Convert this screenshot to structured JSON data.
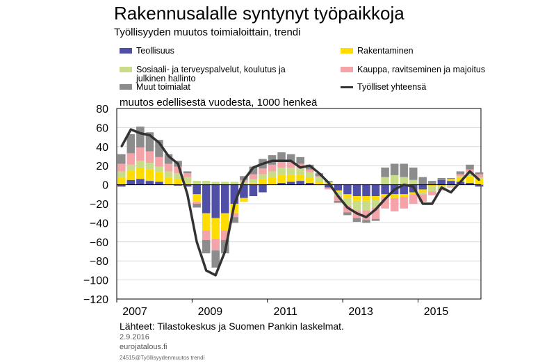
{
  "header": {
    "title": "Rakennusalalle syntynyt työpaikkoja",
    "subtitle": "Työllisyyden muutos toimialoittain, trendi"
  },
  "legend": [
    {
      "label": "Teollisuus",
      "color": "#4f4fa8",
      "kind": "bar"
    },
    {
      "label": "Rakentaminen",
      "color": "#ffdd00",
      "kind": "bar"
    },
    {
      "label": "Sosiaali- ja terveyspalvelut, koulutus ja julkinen hallinto",
      "color": "#c8dc8a",
      "kind": "bar"
    },
    {
      "label": "Kauppa, ravitseminen ja majoitus",
      "color": "#f4a3a8",
      "kind": "bar"
    },
    {
      "label": "Muut toimialat",
      "color": "#8c8c8c",
      "kind": "bar"
    },
    {
      "label": "Työlliset yhteensä",
      "color": "#333333",
      "kind": "line"
    }
  ],
  "unit_label": "muutos edellisestä vuodesta, 1000 henkeä",
  "footer": {
    "source": "Lähteet: Tilastokeskus ja Suomen Pankin laskelmat.",
    "date": "2.9.2016",
    "site": "eurojatalous.fi",
    "code": "24515@Työllisyydenmuutos trendi"
  },
  "chart_data": {
    "type": "bar",
    "stacked": true,
    "ylim": [
      -120,
      80
    ],
    "yticks": [
      -120,
      -100,
      -80,
      -60,
      -40,
      -20,
      0,
      20,
      40,
      60,
      80
    ],
    "ytick_labels": [
      "−120",
      "−100",
      "−80",
      "−60",
      "−40",
      "−20",
      "0",
      "20",
      "40",
      "60",
      "80"
    ],
    "xlim": [
      2007.0,
      2016.67
    ],
    "xticks": [
      2007,
      2009,
      2011,
      2013,
      2015
    ],
    "xtick_labels": [
      "2007",
      "2009",
      "2011",
      "2013",
      "2015"
    ],
    "grid": true,
    "legend_position": "top",
    "x": [
      2007.0,
      2007.25,
      2007.5,
      2007.75,
      2008.0,
      2008.25,
      2008.5,
      2008.75,
      2009.0,
      2009.25,
      2009.5,
      2009.75,
      2010.0,
      2010.25,
      2010.5,
      2010.75,
      2011.0,
      2011.25,
      2011.5,
      2011.75,
      2012.0,
      2012.25,
      2012.5,
      2012.75,
      2013.0,
      2013.25,
      2013.5,
      2013.75,
      2014.0,
      2014.25,
      2014.5,
      2014.75,
      2015.0,
      2015.25,
      2015.5,
      2015.75,
      2016.0,
      2016.25,
      2016.5
    ],
    "series": [
      {
        "name": "Teollisuus",
        "color": "#4f4fa8",
        "values": [
          -2,
          5,
          6,
          4,
          3,
          0,
          -1,
          -2,
          -10,
          -30,
          -35,
          -30,
          -20,
          -14,
          -12,
          -8,
          0,
          2,
          3,
          4,
          2,
          0,
          -3,
          -6,
          -10,
          -12,
          -12,
          -12,
          -10,
          -10,
          -10,
          -8,
          -5,
          0,
          5,
          4,
          3,
          2,
          -2
        ]
      },
      {
        "name": "Rakentaminen",
        "color": "#ffdd00",
        "values": [
          8,
          10,
          12,
          12,
          10,
          8,
          6,
          2,
          -8,
          -18,
          -22,
          -18,
          -10,
          -4,
          2,
          6,
          8,
          8,
          7,
          6,
          5,
          3,
          1,
          -1,
          -4,
          -5,
          -5,
          -4,
          -3,
          -4,
          -3,
          -2,
          -3,
          -2,
          -1,
          2,
          5,
          7,
          6
        ]
      },
      {
        "name": "Sosiaali- ja terveyspalvelut, koulutus ja julkinen hallinto",
        "color": "#c8dc8a",
        "values": [
          6,
          6,
          7,
          7,
          6,
          6,
          6,
          6,
          4,
          4,
          3,
          3,
          3,
          3,
          4,
          5,
          6,
          8,
          8,
          7,
          6,
          5,
          2,
          -5,
          -8,
          -10,
          -10,
          -8,
          8,
          10,
          8,
          5,
          -2,
          -5,
          -3,
          -2,
          1,
          3,
          2
        ]
      },
      {
        "name": "Kauppa, ravitseminen ja majoitus",
        "color": "#f4a3a8",
        "values": [
          8,
          12,
          14,
          12,
          10,
          8,
          7,
          4,
          -2,
          -10,
          -12,
          -10,
          -4,
          2,
          5,
          6,
          7,
          7,
          6,
          5,
          3,
          1,
          -2,
          -5,
          -7,
          -8,
          -10,
          -12,
          -12,
          -14,
          -12,
          -10,
          -8,
          -4,
          -2,
          -1,
          2,
          4,
          3
        ]
      },
      {
        "name": "Muut toimialat",
        "color": "#8c8c8c",
        "values": [
          10,
          20,
          22,
          20,
          18,
          10,
          6,
          2,
          -4,
          -14,
          -18,
          -14,
          -6,
          4,
          8,
          10,
          10,
          9,
          8,
          7,
          5,
          3,
          1,
          -2,
          -3,
          -4,
          -3,
          -2,
          10,
          12,
          14,
          13,
          8,
          4,
          2,
          1,
          3,
          5,
          2
        ]
      },
      {
        "name": "Työlliset yhteensä",
        "color": "#333333",
        "type": "line",
        "values": [
          40,
          58,
          54,
          52,
          44,
          30,
          22,
          -10,
          -60,
          -90,
          -95,
          -70,
          -20,
          5,
          18,
          22,
          25,
          25,
          25,
          18,
          20,
          12,
          2,
          -12,
          -24,
          -30,
          -34,
          -26,
          -15,
          -5,
          0,
          -2,
          -20,
          -20,
          -3,
          -8,
          3,
          14,
          5
        ]
      }
    ]
  }
}
